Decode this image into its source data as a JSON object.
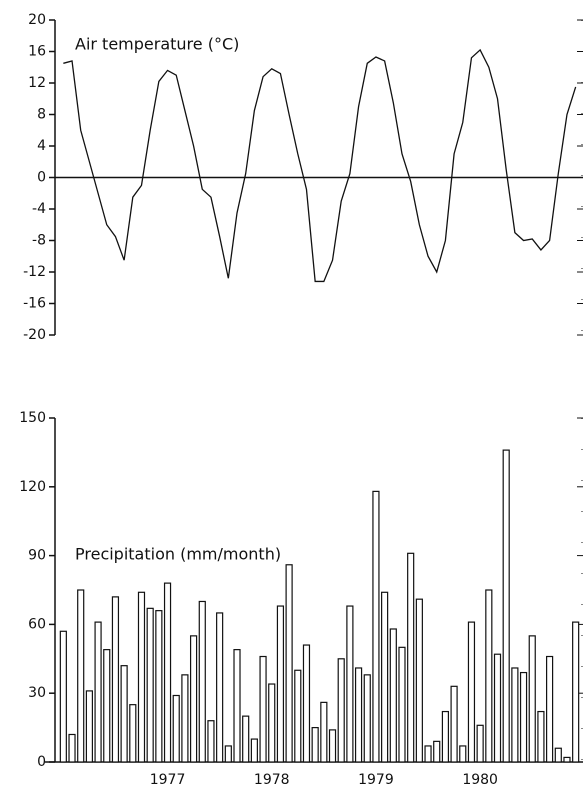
{
  "chart_data": [
    {
      "type": "line",
      "title": "Air temperature (°C)",
      "color": "#111111",
      "values": [
        14.5,
        14.8,
        6,
        2,
        -2,
        -6,
        -7.5,
        -10.5,
        -2.5,
        -1,
        6,
        12.2,
        13.6,
        13,
        8.5,
        4,
        -1.5,
        -2.5,
        -7.5,
        -12.8,
        -4.5,
        0.5,
        8.5,
        12.8,
        13.8,
        13.2,
        8,
        3,
        -1.5,
        -13.2,
        -13.2,
        -10.5,
        -3,
        0.5,
        9,
        14.5,
        15.3,
        14.8,
        9.5,
        3,
        -0.5,
        -6,
        -10,
        -12,
        -8,
        3,
        7,
        15.2,
        16.2,
        14,
        10,
        1,
        -7,
        -8,
        -7.8,
        -9.2,
        -8,
        0.5,
        8,
        11.5
      ],
      "ylim": [
        -20,
        20
      ],
      "yticks": [
        20,
        16,
        12,
        8,
        4,
        0,
        -4,
        -8,
        -12,
        -16,
        -20
      ]
    },
    {
      "type": "bar",
      "title": "Precipitation (mm/month)",
      "color": "#ffffff",
      "categories": [
        null,
        null,
        null,
        null,
        null,
        null,
        null,
        null,
        null,
        null,
        null,
        null,
        "1977",
        null,
        null,
        null,
        null,
        null,
        null,
        null,
        null,
        null,
        null,
        null,
        "1978",
        null,
        null,
        null,
        null,
        null,
        null,
        null,
        null,
        null,
        null,
        null,
        "1979",
        null,
        null,
        null,
        null,
        null,
        null,
        null,
        null,
        null,
        null,
        null,
        "1980",
        null,
        null,
        null,
        null,
        null,
        null,
        null,
        null,
        null,
        null,
        null
      ],
      "values": [
        57,
        12,
        75,
        31,
        61,
        49,
        72,
        42,
        25,
        74,
        67,
        66,
        78,
        29,
        38,
        55,
        70,
        18,
        65,
        7,
        49,
        20,
        10,
        46,
        34,
        68,
        86,
        40,
        51,
        15,
        26,
        14,
        45,
        68,
        41,
        38,
        118,
        74,
        58,
        50,
        91,
        71,
        7,
        9,
        22,
        33,
        7,
        61,
        16,
        75,
        47,
        136,
        41,
        39,
        55,
        22,
        46,
        6,
        2,
        61
      ],
      "ylim": [
        0,
        150
      ],
      "yticks": [
        0,
        30,
        60,
        90,
        120,
        150
      ]
    }
  ]
}
